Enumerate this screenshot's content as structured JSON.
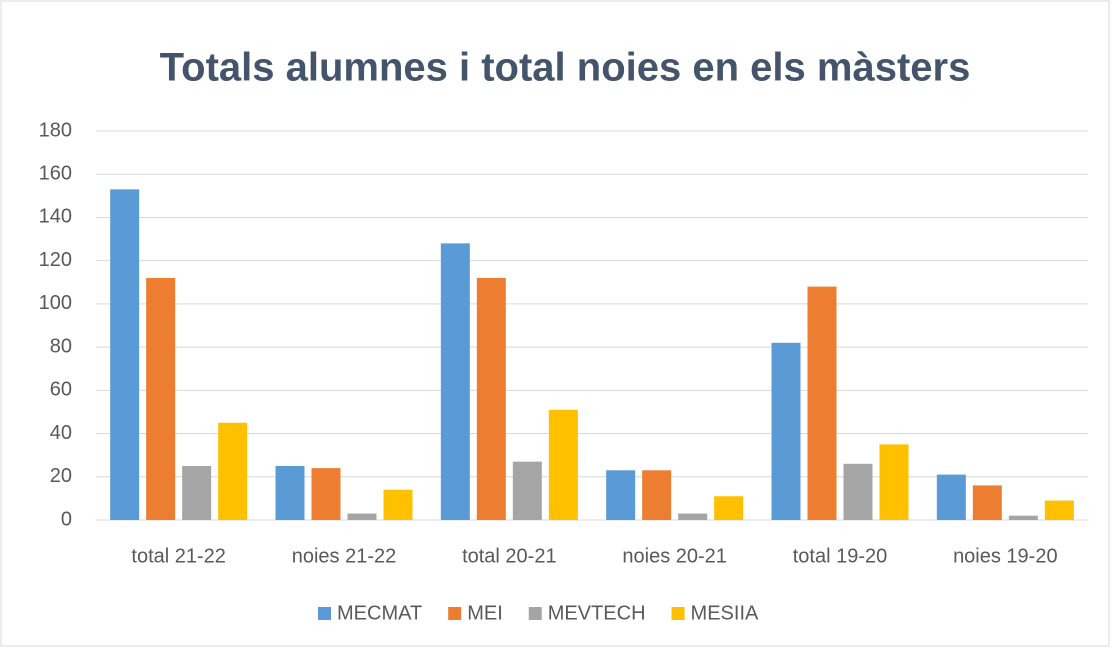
{
  "chart_data": {
    "type": "bar",
    "title": "Totals alumnes i total noies en els màsters",
    "categories": [
      "total 21-22",
      "noies 21-22",
      "total 20-21",
      "noies 20-21",
      "total 19-20",
      "noies 19-20"
    ],
    "series": [
      {
        "name": "MECMAT",
        "color": "#5b9bd5",
        "values": [
          153,
          25,
          128,
          23,
          82,
          21
        ]
      },
      {
        "name": "MEI",
        "color": "#ed7d31",
        "values": [
          112,
          24,
          112,
          23,
          108,
          16
        ]
      },
      {
        "name": "MEVTECH",
        "color": "#a5a5a5",
        "values": [
          25,
          3,
          27,
          3,
          26,
          2
        ]
      },
      {
        "name": "MESIIA",
        "color": "#ffc000",
        "values": [
          45,
          14,
          51,
          11,
          35,
          9
        ]
      }
    ],
    "ylim": [
      0,
      180
    ],
    "yticks": [
      0,
      20,
      40,
      60,
      80,
      100,
      120,
      140,
      160,
      180
    ],
    "grid": true,
    "legend": "bottom"
  }
}
